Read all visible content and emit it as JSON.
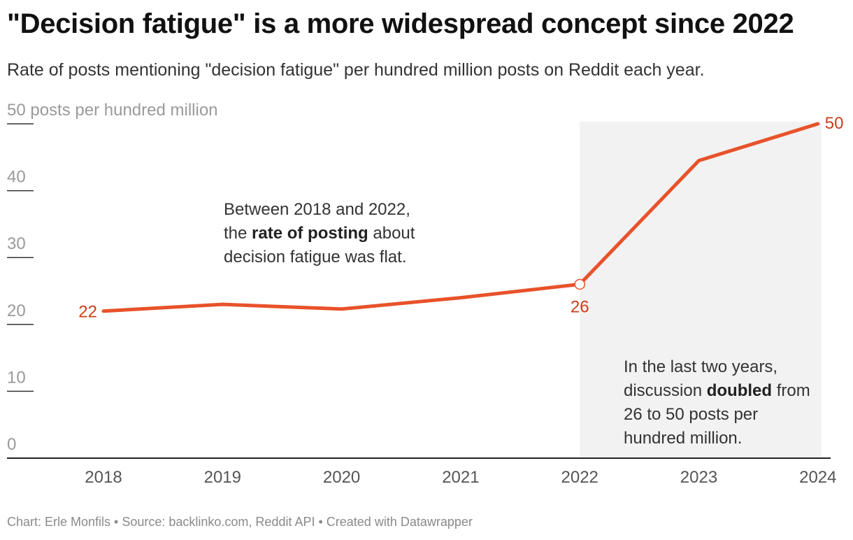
{
  "title": "\"Decision fatigue\" is a more widespread concept since 2022",
  "subtitle": "Rate of posts mentioning \"decision fatigue\" per hundred million posts on Reddit each year.",
  "footer": "Chart: Erle Monfils • Source: backlinko.com, Reddit API • Created with Datawrapper",
  "colors": {
    "line": "#e8522a",
    "label": "#cc3d18",
    "highlight": "#f2f2f2",
    "axis": "#222222"
  },
  "notes": {
    "left": {
      "p1": "Between 2018 and 2022, the ",
      "bold": "rate of posting",
      "p2": " about decision fatigue was flat."
    },
    "right": {
      "p1": "In the last two years, discussion ",
      "bold": "doubled",
      "p2": " from 26 to 50 posts per hundred million."
    }
  },
  "chart_data": {
    "type": "line",
    "x": [
      "2018",
      "2019",
      "2020",
      "2021",
      "2022",
      "2023",
      "2024"
    ],
    "series": [
      {
        "values": [
          22,
          23,
          22.3,
          24,
          26,
          44.5,
          50
        ]
      }
    ],
    "ylim": [
      0,
      50
    ],
    "yticks": [
      0,
      10,
      20,
      30,
      40,
      50
    ],
    "ytick_labels": [
      "0",
      "10",
      "20",
      "30",
      "40",
      "50 posts per hundred million"
    ],
    "data_labels": [
      {
        "x": "2018",
        "text": "22"
      },
      {
        "x": "2022",
        "text": "26"
      },
      {
        "x": "2024",
        "text": "50"
      }
    ],
    "highlight_range": [
      "2022",
      "2024"
    ],
    "grid": false
  }
}
